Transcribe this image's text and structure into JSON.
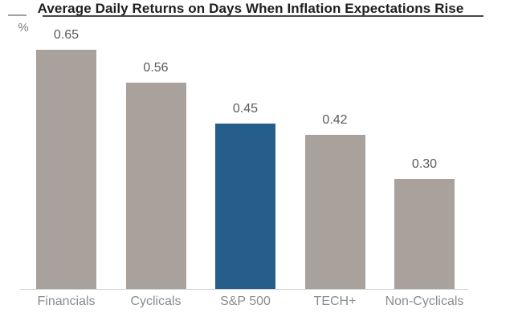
{
  "title": "Average Daily Returns on Days When Inflation Expectations Rise",
  "y_axis_unit": "%",
  "colors": {
    "bar_default": "#a9a29c",
    "bar_highlight": "#255d8b",
    "axis_line": "#cfccc9",
    "title_text": "#1f1f1f",
    "value_label_text": "#5a5a5a",
    "category_label_text": "#8c8c8c"
  },
  "chart_data": {
    "type": "bar",
    "title": "Average Daily Returns on Days When Inflation Expectations Rise",
    "categories": [
      "Financials",
      "Cyclicals",
      "S&P 500",
      "TECH+",
      "Non-Cyclicals"
    ],
    "values": [
      0.65,
      0.56,
      0.45,
      0.42,
      0.3
    ],
    "value_labels": [
      "0.65",
      "0.56",
      "0.45",
      "0.42",
      "0.30"
    ],
    "highlight_index": 2,
    "highlight_category": "S&P 500",
    "bar_color_default": "#a9a29c",
    "bar_color_highlight": "#255d8b",
    "xlabel": "",
    "ylabel": "%",
    "ylim": [
      0,
      0.7
    ],
    "grid": false,
    "legend": "none",
    "y_axis_ticks": "none",
    "data_labels": "above-bars"
  }
}
